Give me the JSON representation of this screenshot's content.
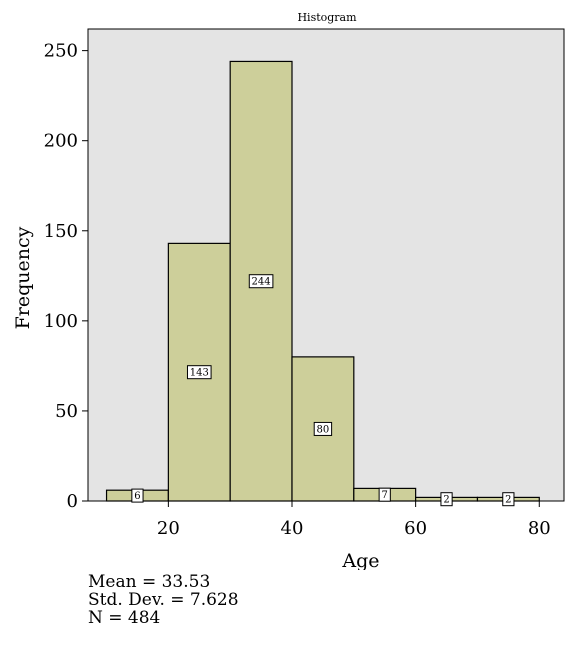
{
  "chart_data": {
    "type": "bar",
    "title": "Histogram",
    "xlabel": "Age",
    "ylabel": "Frequency",
    "xlim": [
      7,
      84
    ],
    "ylim": [
      0,
      262
    ],
    "x_ticks": [
      20,
      40,
      60,
      80
    ],
    "y_ticks": [
      0,
      50,
      100,
      150,
      200,
      250
    ],
    "bins": [
      {
        "start": 10,
        "end": 20,
        "value": 6
      },
      {
        "start": 20,
        "end": 30,
        "value": 143
      },
      {
        "start": 30,
        "end": 40,
        "value": 244
      },
      {
        "start": 40,
        "end": 50,
        "value": 80
      },
      {
        "start": 50,
        "end": 60,
        "value": 7
      },
      {
        "start": 60,
        "end": 70,
        "value": 2
      },
      {
        "start": 70,
        "end": 80,
        "value": 2
      }
    ],
    "grid": false,
    "colors": {
      "plot_bg": "#e4e4e4",
      "bar_fill": "#cdcf9a",
      "bar_stroke": "#000000"
    }
  },
  "stats": {
    "mean": "Mean = 33.53",
    "std": "Std. Dev. = 7.628",
    "n": "N = 484"
  }
}
